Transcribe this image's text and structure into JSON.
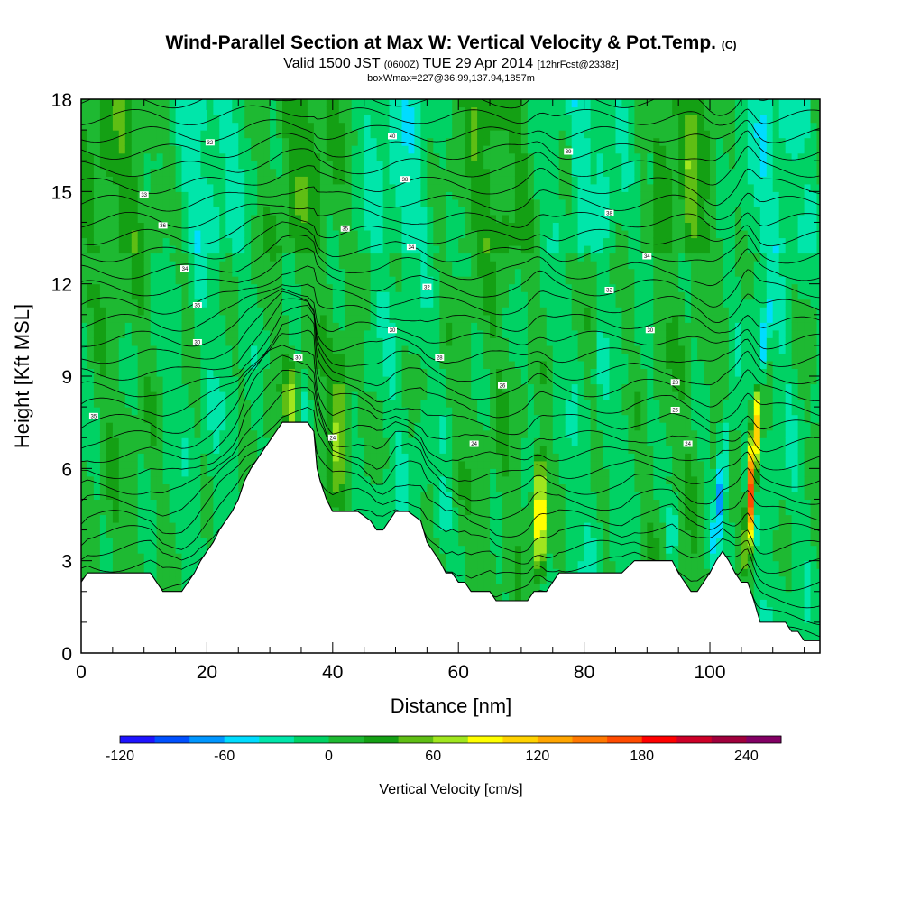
{
  "header": {
    "title": "Wind-Parallel Section at Max W: Vertical Velocity & Pot.Temp.",
    "title_mark": "(C)",
    "valid_prefix": "Valid 1500 JST",
    "valid_utc": "(0600Z)",
    "valid_date": "TUE 29 Apr 2014",
    "forecast": "[12hrFcst@2338z]",
    "box_info": "boxWmax=227@36.99,137.94,1857m"
  },
  "chart_data": {
    "type": "heatmap",
    "xlabel": "Distance [nm]",
    "ylabel": "Height [Kft MSL]",
    "xlim": [
      0,
      117.5
    ],
    "ylim": [
      0,
      18
    ],
    "x_ticks": [
      "0",
      "20",
      "40",
      "60",
      "80",
      "100"
    ],
    "y_ticks": [
      "0",
      "3",
      "6",
      "9",
      "12",
      "15",
      "18"
    ],
    "terrain": {
      "x": [
        0,
        1,
        2,
        5,
        8,
        11,
        13,
        16,
        17,
        18,
        19,
        20,
        21,
        22,
        23,
        24,
        25,
        26,
        27,
        28,
        29,
        30,
        31,
        32,
        33,
        34,
        35,
        36,
        37,
        37.5,
        38,
        39,
        40,
        41,
        42,
        43,
        44,
        46,
        47,
        48,
        49,
        50,
        51,
        52,
        54,
        55,
        56,
        57,
        58,
        59,
        60,
        61,
        62,
        64,
        65,
        66,
        67,
        68,
        69,
        70,
        71,
        72,
        73,
        74,
        75,
        76,
        77,
        78,
        79,
        80,
        81,
        82,
        83,
        84,
        85,
        86,
        88,
        90,
        92,
        94,
        95,
        96,
        97,
        98,
        99,
        100,
        101,
        102,
        103,
        104,
        105,
        106,
        107,
        108,
        109,
        110,
        111,
        112,
        113,
        114,
        115,
        116,
        117.5
      ],
      "kft": [
        2.3,
        2.6,
        2.6,
        2.6,
        2.6,
        2.6,
        2.0,
        2.0,
        2.3,
        2.6,
        3.0,
        3.3,
        3.6,
        4.0,
        4.3,
        4.6,
        5.0,
        5.6,
        6.0,
        6.3,
        6.6,
        6.9,
        7.2,
        7.5,
        7.5,
        7.5,
        7.5,
        7.5,
        7.2,
        6.0,
        5.6,
        5.0,
        4.6,
        4.6,
        4.6,
        4.6,
        4.6,
        4.3,
        4.0,
        4.0,
        4.3,
        4.6,
        4.6,
        4.6,
        4.3,
        3.6,
        3.3,
        3.0,
        2.6,
        2.6,
        2.3,
        2.3,
        2.0,
        2.0,
        2.0,
        1.7,
        1.7,
        1.7,
        1.7,
        1.7,
        1.7,
        2.0,
        2.0,
        2.0,
        2.3,
        2.6,
        2.6,
        2.6,
        2.6,
        2.6,
        2.6,
        2.6,
        2.6,
        2.6,
        2.6,
        2.6,
        3.0,
        3.0,
        3.0,
        3.0,
        2.6,
        2.3,
        2.0,
        2.0,
        2.3,
        2.6,
        3.0,
        3.3,
        3.0,
        2.6,
        2.3,
        2.3,
        1.7,
        1.0,
        1.0,
        1.0,
        1.0,
        1.0,
        0.7,
        0.7,
        0.4,
        0.4,
        0.4
      ]
    },
    "pot_temp_labels": [
      {
        "text": "35",
        "x": 2.0,
        "y": 7.7
      },
      {
        "text": "33",
        "x": 10.0,
        "y": 14.9
      },
      {
        "text": "36",
        "x": 13.0,
        "y": 13.9
      },
      {
        "text": "34",
        "x": 16.5,
        "y": 12.5
      },
      {
        "text": "35",
        "x": 18.5,
        "y": 11.3
      },
      {
        "text": "30",
        "x": 18.5,
        "y": 10.1
      },
      {
        "text": "32",
        "x": 20.5,
        "y": 16.6
      },
      {
        "text": "35",
        "x": 42.0,
        "y": 13.8
      },
      {
        "text": "40",
        "x": 49.5,
        "y": 16.8
      },
      {
        "text": "38",
        "x": 51.5,
        "y": 15.4
      },
      {
        "text": "34",
        "x": 52.5,
        "y": 13.2
      },
      {
        "text": "32",
        "x": 55.0,
        "y": 11.9
      },
      {
        "text": "30",
        "x": 49.5,
        "y": 10.5
      },
      {
        "text": "28",
        "x": 57.0,
        "y": 9.6
      },
      {
        "text": "26",
        "x": 67.0,
        "y": 8.7
      },
      {
        "text": "24",
        "x": 62.5,
        "y": 6.8
      },
      {
        "text": "24",
        "x": 40.0,
        "y": 7.0
      },
      {
        "text": "30",
        "x": 34.5,
        "y": 9.6
      },
      {
        "text": "39",
        "x": 77.5,
        "y": 16.3
      },
      {
        "text": "38",
        "x": 84.0,
        "y": 14.3
      },
      {
        "text": "34",
        "x": 90.0,
        "y": 12.9
      },
      {
        "text": "32",
        "x": 84.0,
        "y": 11.8
      },
      {
        "text": "30",
        "x": 90.5,
        "y": 10.5
      },
      {
        "text": "28",
        "x": 94.5,
        "y": 8.8
      },
      {
        "text": "26",
        "x": 94.5,
        "y": 7.9
      },
      {
        "text": "24",
        "x": 96.5,
        "y": 6.8
      }
    ],
    "colorbar": {
      "title": "Vertical Velocity [cm/s]",
      "tick_labels": [
        "-120",
        "-60",
        "0",
        "60",
        "120",
        "180",
        "240"
      ],
      "min": -120,
      "max": 260,
      "step": 20,
      "colors": [
        "#1e14ff",
        "#0050ff",
        "#0096ff",
        "#00dcff",
        "#00e6aa",
        "#00d264",
        "#1eb932",
        "#14a014",
        "#5fbe14",
        "#a0e61e",
        "#ffff00",
        "#ffd200",
        "#ffa500",
        "#ff7800",
        "#ff4b00",
        "#ff0000",
        "#cd0028",
        "#a0003c",
        "#820064"
      ]
    }
  }
}
